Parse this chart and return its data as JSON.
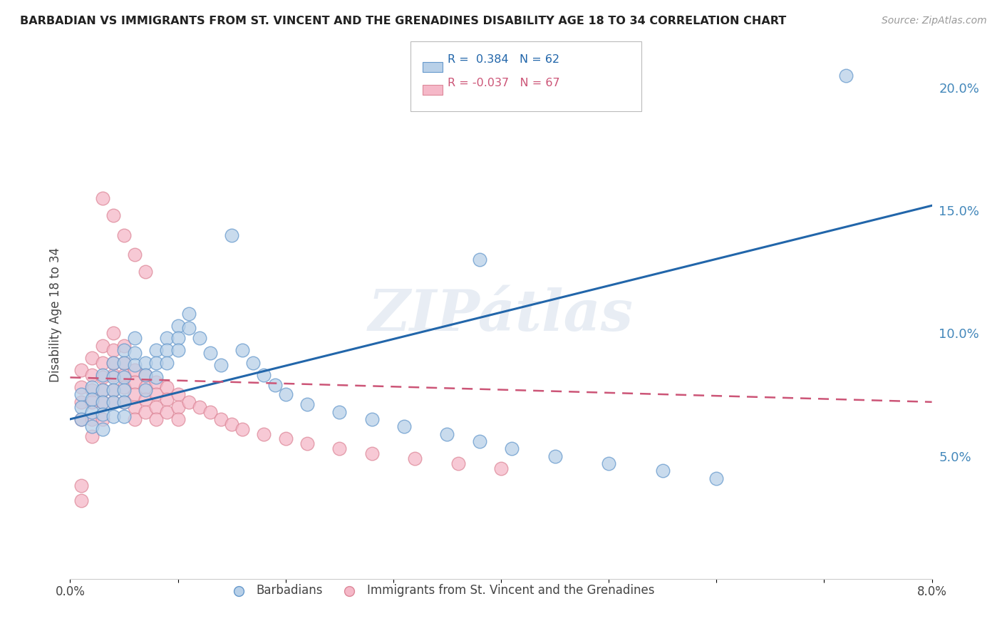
{
  "title": "BARBADIAN VS IMMIGRANTS FROM ST. VINCENT AND THE GRENADINES DISABILITY AGE 18 TO 34 CORRELATION CHART",
  "source": "Source: ZipAtlas.com",
  "ylabel": "Disability Age 18 to 34",
  "xlim": [
    0.0,
    0.08
  ],
  "ylim": [
    0.0,
    0.215
  ],
  "xticks": [
    0.0,
    0.01,
    0.02,
    0.03,
    0.04,
    0.05,
    0.06,
    0.07,
    0.08
  ],
  "xticklabels": [
    "0.0%",
    "",
    "",
    "",
    "",
    "",
    "",
    "",
    "8.0%"
  ],
  "yticks_right": [
    0.05,
    0.1,
    0.15,
    0.2
  ],
  "ytick_right_labels": [
    "5.0%",
    "10.0%",
    "15.0%",
    "20.0%"
  ],
  "blue_R": 0.384,
  "blue_N": 62,
  "pink_R": -0.037,
  "pink_N": 67,
  "blue_color": "#b8d0e8",
  "pink_color": "#f5b8c8",
  "blue_edge_color": "#6699cc",
  "pink_edge_color": "#dd8899",
  "blue_line_color": "#2266aa",
  "pink_line_color": "#cc5577",
  "right_axis_color": "#4488bb",
  "watermark": "ZIPátlas",
  "legend_label_blue": "Barbadians",
  "legend_label_pink": "Immigrants from St. Vincent and the Grenadines",
  "blue_line_x0": 0.0,
  "blue_line_y0": 0.065,
  "blue_line_x1": 0.08,
  "blue_line_y1": 0.152,
  "pink_line_x0": 0.0,
  "pink_line_y0": 0.082,
  "pink_line_x1": 0.08,
  "pink_line_y1": 0.072,
  "blue_scatter_x": [
    0.001,
    0.001,
    0.001,
    0.002,
    0.002,
    0.002,
    0.002,
    0.003,
    0.003,
    0.003,
    0.003,
    0.003,
    0.004,
    0.004,
    0.004,
    0.004,
    0.004,
    0.005,
    0.005,
    0.005,
    0.005,
    0.005,
    0.005,
    0.006,
    0.006,
    0.006,
    0.007,
    0.007,
    0.007,
    0.008,
    0.008,
    0.008,
    0.009,
    0.009,
    0.009,
    0.01,
    0.01,
    0.01,
    0.011,
    0.011,
    0.012,
    0.013,
    0.014,
    0.015,
    0.016,
    0.017,
    0.018,
    0.019,
    0.02,
    0.022,
    0.025,
    0.028,
    0.031,
    0.035,
    0.038,
    0.041,
    0.045,
    0.05,
    0.055,
    0.06,
    0.038,
    0.072
  ],
  "blue_scatter_y": [
    0.075,
    0.07,
    0.065,
    0.078,
    0.073,
    0.068,
    0.062,
    0.083,
    0.077,
    0.072,
    0.067,
    0.061,
    0.088,
    0.082,
    0.077,
    0.072,
    0.066,
    0.093,
    0.088,
    0.082,
    0.077,
    0.072,
    0.066,
    0.098,
    0.092,
    0.087,
    0.088,
    0.083,
    0.077,
    0.093,
    0.088,
    0.082,
    0.098,
    0.093,
    0.088,
    0.103,
    0.098,
    0.093,
    0.108,
    0.102,
    0.098,
    0.092,
    0.087,
    0.14,
    0.093,
    0.088,
    0.083,
    0.079,
    0.075,
    0.071,
    0.068,
    0.065,
    0.062,
    0.059,
    0.056,
    0.053,
    0.05,
    0.047,
    0.044,
    0.041,
    0.13,
    0.205
  ],
  "pink_scatter_x": [
    0.001,
    0.001,
    0.001,
    0.001,
    0.002,
    0.002,
    0.002,
    0.002,
    0.002,
    0.002,
    0.003,
    0.003,
    0.003,
    0.003,
    0.003,
    0.003,
    0.004,
    0.004,
    0.004,
    0.004,
    0.004,
    0.004,
    0.005,
    0.005,
    0.005,
    0.005,
    0.005,
    0.006,
    0.006,
    0.006,
    0.006,
    0.006,
    0.007,
    0.007,
    0.007,
    0.007,
    0.008,
    0.008,
    0.008,
    0.008,
    0.009,
    0.009,
    0.009,
    0.01,
    0.01,
    0.01,
    0.011,
    0.012,
    0.013,
    0.014,
    0.015,
    0.016,
    0.018,
    0.02,
    0.022,
    0.025,
    0.028,
    0.032,
    0.036,
    0.04,
    0.003,
    0.004,
    0.005,
    0.006,
    0.007,
    0.001,
    0.001
  ],
  "pink_scatter_y": [
    0.085,
    0.078,
    0.072,
    0.065,
    0.09,
    0.083,
    0.077,
    0.072,
    0.065,
    0.058,
    0.095,
    0.088,
    0.082,
    0.077,
    0.072,
    0.065,
    0.1,
    0.093,
    0.088,
    0.083,
    0.077,
    0.072,
    0.095,
    0.088,
    0.083,
    0.078,
    0.072,
    0.085,
    0.08,
    0.075,
    0.07,
    0.065,
    0.083,
    0.078,
    0.073,
    0.068,
    0.08,
    0.075,
    0.07,
    0.065,
    0.078,
    0.073,
    0.068,
    0.075,
    0.07,
    0.065,
    0.072,
    0.07,
    0.068,
    0.065,
    0.063,
    0.061,
    0.059,
    0.057,
    0.055,
    0.053,
    0.051,
    0.049,
    0.047,
    0.045,
    0.155,
    0.148,
    0.14,
    0.132,
    0.125,
    0.038,
    0.032
  ]
}
